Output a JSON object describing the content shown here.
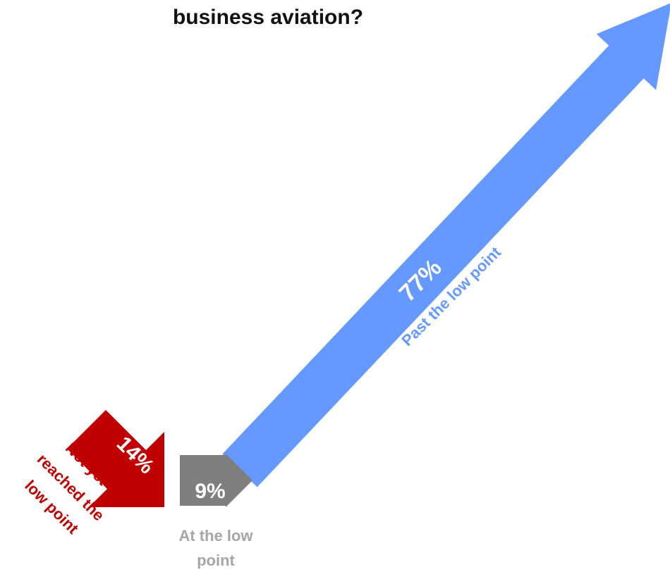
{
  "title": "business aviation?",
  "chart_data": {
    "type": "other",
    "title": "business aviation?",
    "segments": [
      {
        "key": "not_yet",
        "label": "Not yet reached the low point",
        "label_lines": [
          "Not yet",
          "reached the",
          "low point"
        ],
        "value": 14,
        "display": "14%",
        "direction": "down",
        "color": "#c00000",
        "label_color": "#c00000"
      },
      {
        "key": "at_low",
        "label": "At the low point",
        "label_lines": [
          "At the low",
          "point"
        ],
        "value": 9,
        "display": "9%",
        "direction": "flat",
        "color": "#7f7f7f",
        "label_color": "#a6a6a6"
      },
      {
        "key": "past_low",
        "label": "Past the low point",
        "label_lines": [
          "Past the low point"
        ],
        "value": 77,
        "display": "77%",
        "direction": "up",
        "color": "#6699ff",
        "label_color": "#6699ff"
      }
    ]
  }
}
